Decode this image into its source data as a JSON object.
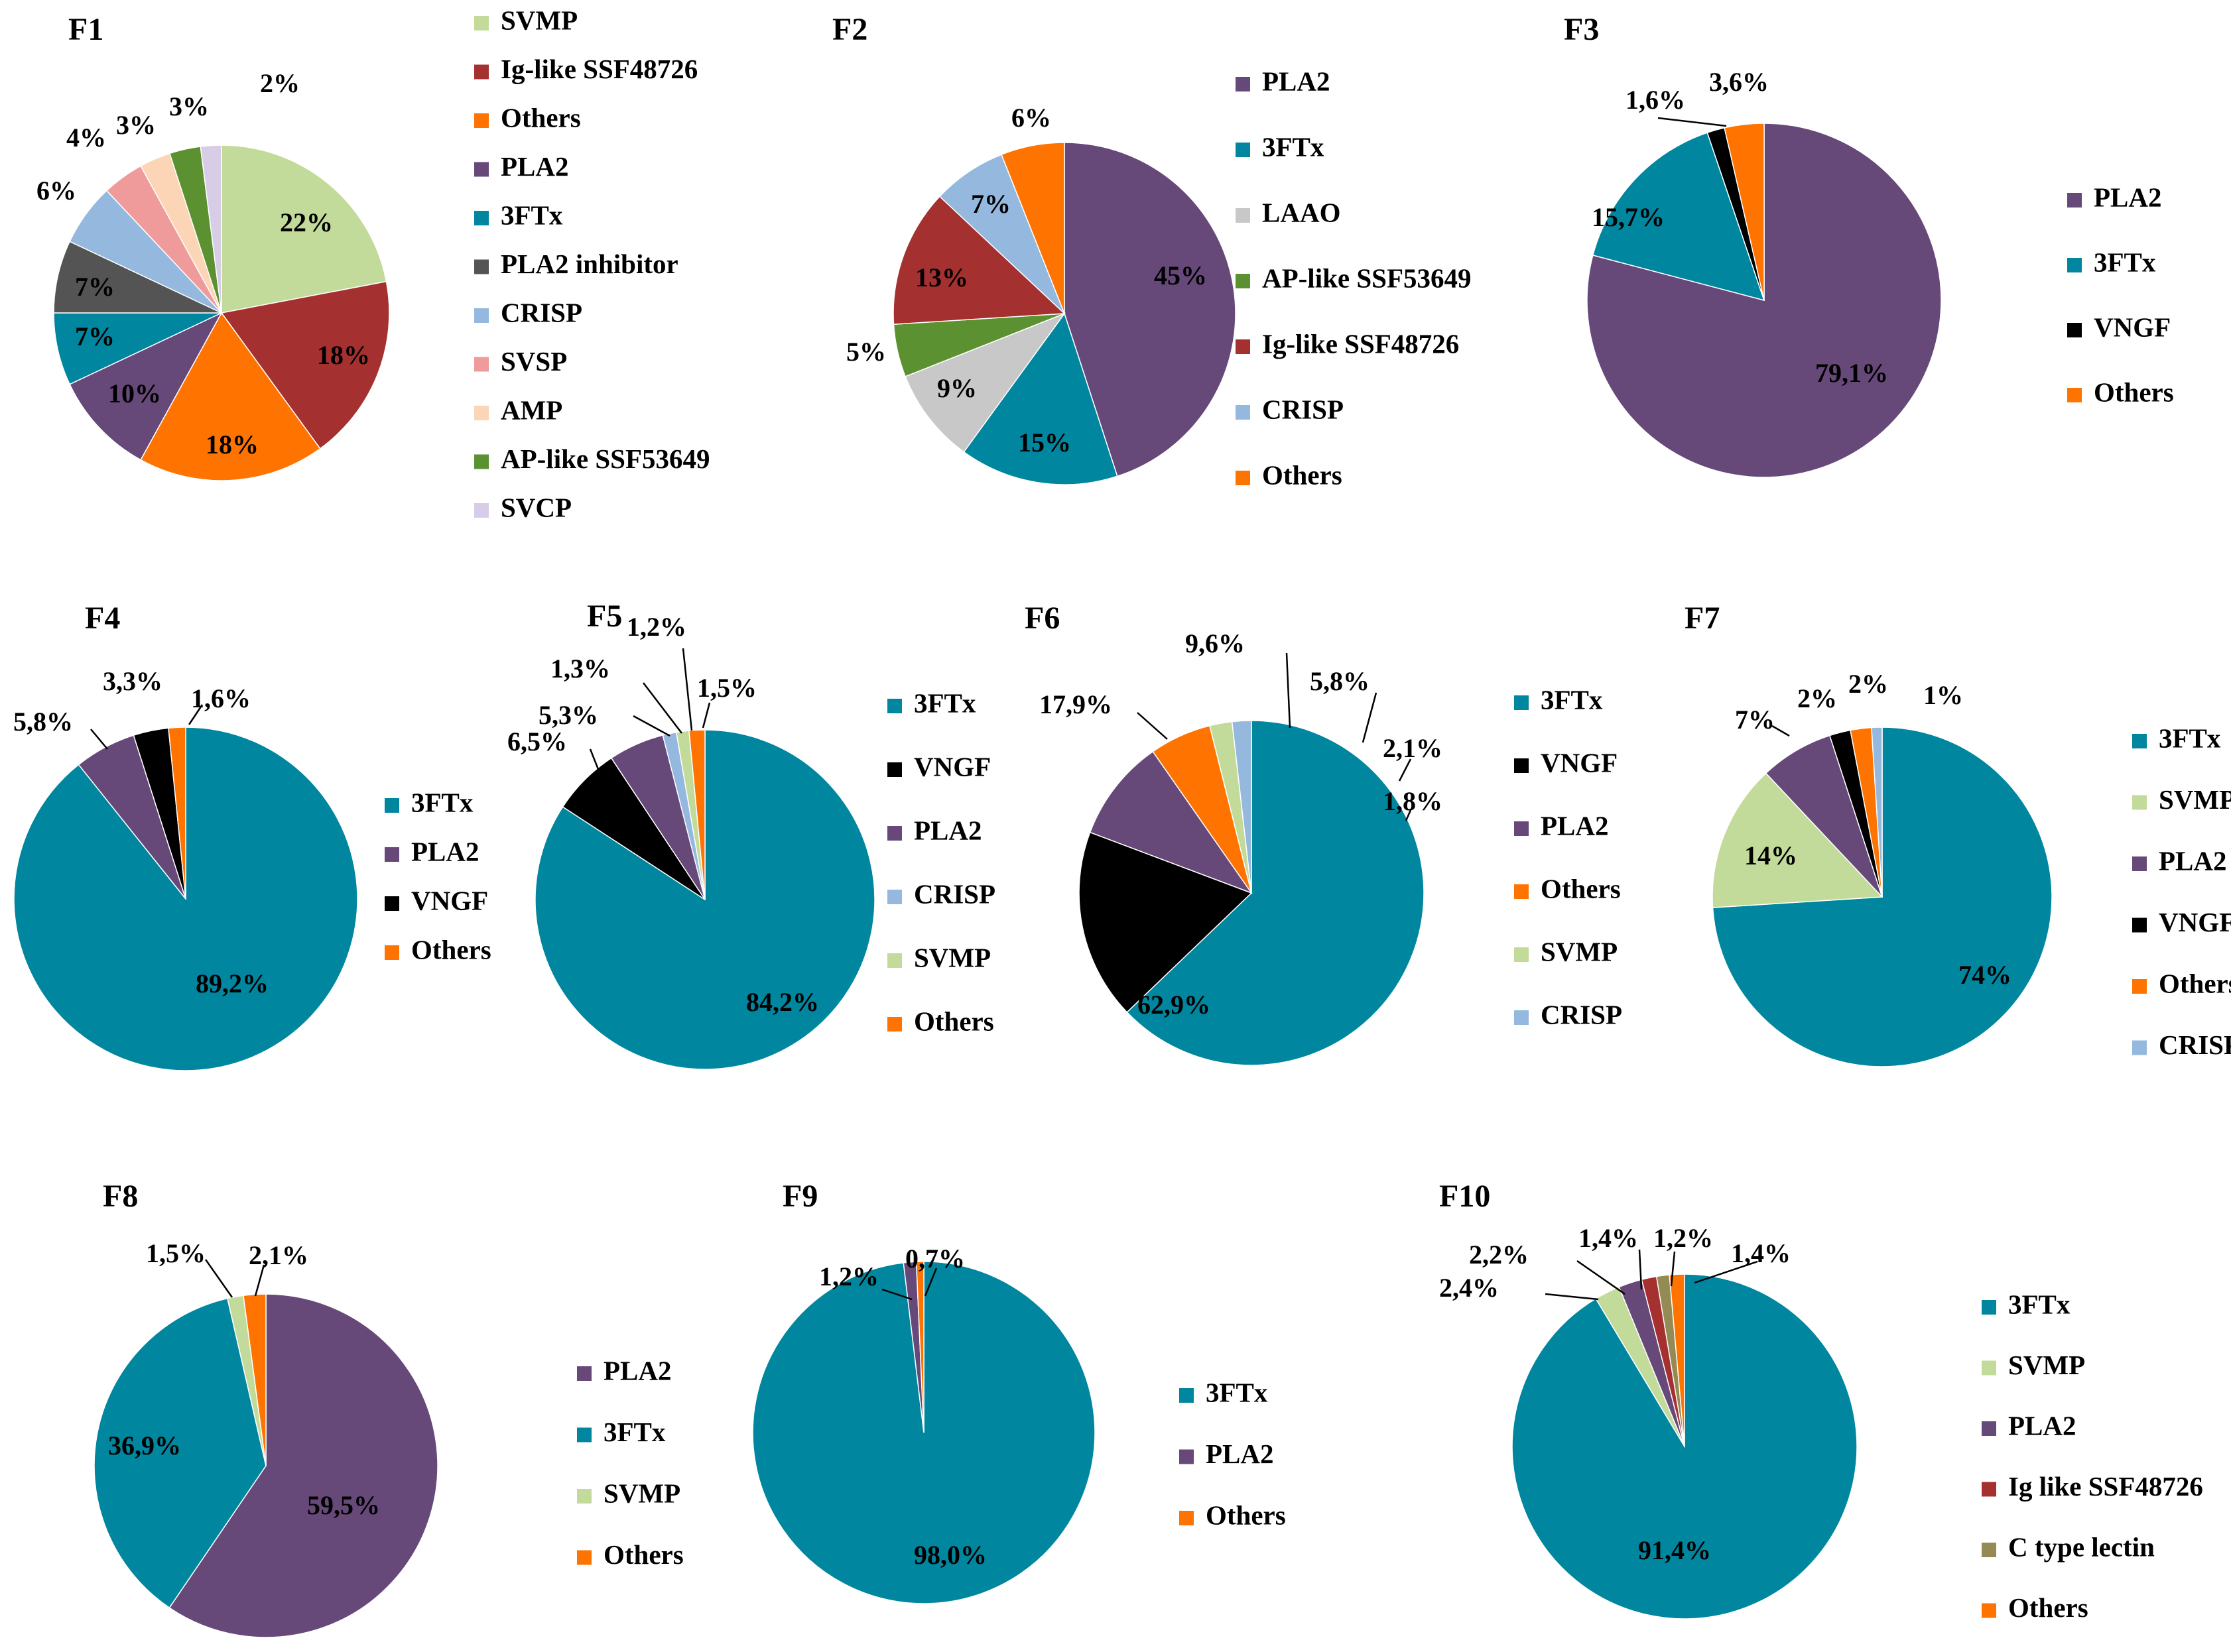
{
  "chart_data": [
    {
      "type": "pie",
      "title": "F1",
      "slices": [
        {
          "label": "SVMP",
          "value": 22,
          "text": "22%",
          "color": "#C3DB9A"
        },
        {
          "label": "Ig-like SSF48726",
          "value": 18,
          "text": "18%",
          "color": "#A4302F"
        },
        {
          "label": "Others",
          "value": 18,
          "text": "18%",
          "color": "#FF7300"
        },
        {
          "label": "PLA2",
          "value": 10,
          "text": "10%",
          "color": "#664879"
        },
        {
          "label": "3FTx",
          "value": 7,
          "text": "7%",
          "color": "#00869E"
        },
        {
          "label": "PLA2 inhibitor",
          "value": 7,
          "text": "7%",
          "color": "#545454"
        },
        {
          "label": "CRISP",
          "value": 6,
          "text": "6%",
          "color": "#95B8DE"
        },
        {
          "label": "SVSP",
          "value": 4,
          "text": "4%",
          "color": "#EF9B9B"
        },
        {
          "label": "AMP",
          "value": 3,
          "text": "3%",
          "color": "#FBD5B5"
        },
        {
          "label": "AP-like SSF53649",
          "value": 3,
          "text": "3%",
          "color": "#5C9132"
        },
        {
          "label": "SVCP",
          "value": 2,
          "text": "2%",
          "color": "#D8CDE6"
        }
      ],
      "legend": [
        "SVMP",
        "Ig-like SSF48726",
        "Others",
        "PLA2",
        "3FTx",
        "PLA2 inhibitor",
        "CRISP",
        "SVSP",
        "AMP",
        "AP-like SSF53649",
        "SVCP"
      ]
    },
    {
      "type": "pie",
      "title": "F2",
      "slices": [
        {
          "label": "PLA2",
          "value": 45,
          "text": "45%",
          "color": "#664879"
        },
        {
          "label": "3FTx",
          "value": 15,
          "text": "15%",
          "color": "#00869E"
        },
        {
          "label": "LAAO",
          "value": 9,
          "text": "9%",
          "color": "#C8C8C8"
        },
        {
          "label": "AP-like SSF53649",
          "value": 5,
          "text": "5%",
          "color": "#5C9132"
        },
        {
          "label": "Ig-like SSF48726",
          "value": 13,
          "text": "13%",
          "color": "#A4302F"
        },
        {
          "label": "CRISP",
          "value": 7,
          "text": "7%",
          "color": "#95B8DE"
        },
        {
          "label": "Others",
          "value": 6,
          "text": "6%",
          "color": "#FF7300"
        }
      ],
      "legend": [
        "PLA2",
        "3FTx",
        "LAAO",
        "AP-like SSF53649",
        "Ig-like SSF48726",
        "CRISP",
        "Others"
      ]
    },
    {
      "type": "pie",
      "title": "F3",
      "slices": [
        {
          "label": "PLA2",
          "value": 79.1,
          "text": "79,1%",
          "color": "#664879"
        },
        {
          "label": "3FTx",
          "value": 15.7,
          "text": "15,7%",
          "color": "#00869E"
        },
        {
          "label": "VNGF",
          "value": 1.6,
          "text": "1,6%",
          "color": "#000000"
        },
        {
          "label": "Others",
          "value": 3.6,
          "text": "3,6%",
          "color": "#FF7300"
        }
      ],
      "legend": [
        "PLA2",
        "3FTx",
        "VNGF",
        "Others"
      ]
    },
    {
      "type": "pie",
      "title": "F4",
      "slices": [
        {
          "label": "3FTx",
          "value": 89.2,
          "text": "89,2%",
          "color": "#00869E"
        },
        {
          "label": "PLA2",
          "value": 5.8,
          "text": "5,8%",
          "color": "#664879"
        },
        {
          "label": "VNGF",
          "value": 3.3,
          "text": "3,3%",
          "color": "#000000"
        },
        {
          "label": "Others",
          "value": 1.6,
          "text": "1,6%",
          "color": "#FF7300"
        }
      ],
      "legend": [
        "3FTx",
        "PLA2",
        "VNGF",
        "Others"
      ]
    },
    {
      "type": "pie",
      "title": "F5",
      "slices": [
        {
          "label": "3FTx",
          "value": 84.2,
          "text": "84,2%",
          "color": "#00869E"
        },
        {
          "label": "VNGF",
          "value": 6.5,
          "text": "6,5%",
          "color": "#000000"
        },
        {
          "label": "PLA2",
          "value": 5.3,
          "text": "5,3%",
          "color": "#664879"
        },
        {
          "label": "CRISP",
          "value": 1.3,
          "text": "1,3%",
          "color": "#95B8DE"
        },
        {
          "label": "SVMP",
          "value": 1.2,
          "text": "1,2%",
          "color": "#C3DB9A"
        },
        {
          "label": "Others",
          "value": 1.5,
          "text": "1,5%",
          "color": "#FF7300"
        }
      ],
      "legend": [
        "3FTx",
        "VNGF",
        "PLA2",
        "CRISP",
        "SVMP",
        "Others"
      ]
    },
    {
      "type": "pie",
      "title": "F6",
      "slices": [
        {
          "label": "3FTx",
          "value": 62.9,
          "text": "62,9%",
          "color": "#00869E"
        },
        {
          "label": "VNGF",
          "value": 17.9,
          "text": "17,9%",
          "color": "#000000"
        },
        {
          "label": "PLA2",
          "value": 9.6,
          "text": "9,6%",
          "color": "#664879"
        },
        {
          "label": "Others",
          "value": 5.8,
          "text": "5,8%",
          "color": "#FF7300"
        },
        {
          "label": "SVMP",
          "value": 2.1,
          "text": "2,1%",
          "color": "#C3DB9A"
        },
        {
          "label": "CRISP",
          "value": 1.8,
          "text": "1,8%",
          "color": "#95B8DE"
        }
      ],
      "legend": [
        "3FTx",
        "VNGF",
        "PLA2",
        "Others",
        "SVMP",
        "CRISP"
      ]
    },
    {
      "type": "pie",
      "title": "F7",
      "slices": [
        {
          "label": "3FTx",
          "value": 74,
          "text": "74%",
          "color": "#00869E"
        },
        {
          "label": "SVMP",
          "value": 14,
          "text": "14%",
          "color": "#C3DB9A"
        },
        {
          "label": "PLA2",
          "value": 7,
          "text": "7%",
          "color": "#664879"
        },
        {
          "label": "VNGF",
          "value": 2,
          "text": "2%",
          "color": "#000000"
        },
        {
          "label": "Others",
          "value": 2,
          "text": "2%",
          "color": "#FF7300"
        },
        {
          "label": "CRISP",
          "value": 1,
          "text": "1%",
          "color": "#95B8DE"
        }
      ],
      "legend": [
        "3FTx",
        "SVMP",
        "PLA2",
        "VNGF",
        "Others",
        "CRISP"
      ]
    },
    {
      "type": "pie",
      "title": "F8",
      "slices": [
        {
          "label": "PLA2",
          "value": 59.5,
          "text": "59,5%",
          "color": "#664879"
        },
        {
          "label": "3FTx",
          "value": 36.9,
          "text": "36,9%",
          "color": "#00869E"
        },
        {
          "label": "SVMP",
          "value": 1.5,
          "text": "1,5%",
          "color": "#C3DB9A"
        },
        {
          "label": "Others",
          "value": 2.1,
          "text": "2,1%",
          "color": "#FF7300"
        }
      ],
      "legend": [
        "PLA2",
        "3FTx",
        "SVMP",
        "Others"
      ]
    },
    {
      "type": "pie",
      "title": "F9",
      "slices": [
        {
          "label": "3FTx",
          "value": 98.0,
          "text": "98,0%",
          "color": "#00869E"
        },
        {
          "label": "PLA2",
          "value": 1.2,
          "text": "1,2%",
          "color": "#664879"
        },
        {
          "label": "Others",
          "value": 0.7,
          "text": "0,7%",
          "color": "#FF7300"
        }
      ],
      "legend": [
        "3FTx",
        "PLA2",
        "Others"
      ]
    },
    {
      "type": "pie",
      "title": "F10",
      "slices": [
        {
          "label": "3FTx",
          "value": 91.4,
          "text": "91,4%",
          "color": "#00869E"
        },
        {
          "label": "SVMP",
          "value": 2.4,
          "text": "2,4%",
          "color": "#C3DB9A"
        },
        {
          "label": "PLA2",
          "value": 2.2,
          "text": "2,2%",
          "color": "#664879"
        },
        {
          "label": "Ig like SSF48726",
          "value": 1.4,
          "text": "1,4%",
          "color": "#A4302F"
        },
        {
          "label": "C type lectin",
          "value": 1.2,
          "text": "1,2%",
          "color": "#948A54"
        },
        {
          "label": "Others",
          "value": 1.4,
          "text": "1,4%",
          "color": "#FF7300"
        }
      ],
      "legend": [
        "3FTx",
        "SVMP",
        "PLA2",
        "Ig like SSF48726",
        "C type lectin",
        "Others"
      ]
    }
  ]
}
